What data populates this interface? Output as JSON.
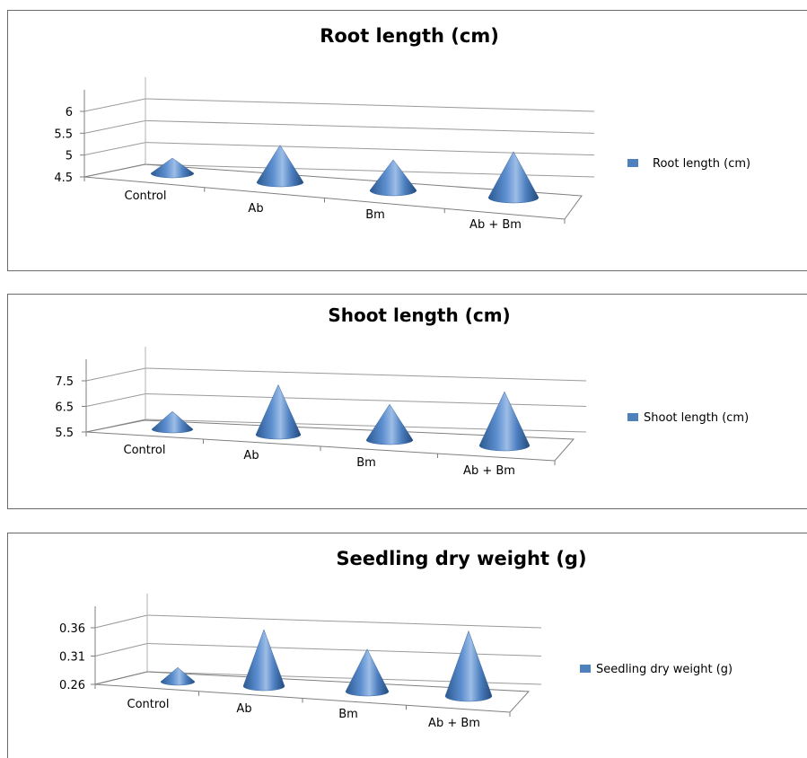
{
  "chart_data": [
    {
      "type": "bar",
      "bar_shape": "cone-3d",
      "title": "Root length (cm)",
      "categories": [
        "Control",
        "Ab",
        "Bm",
        "Ab + Bm"
      ],
      "series": [
        {
          "name": "Root length (cm)",
          "values": [
            4.85,
            5.35,
            5.2,
            5.55
          ]
        }
      ],
      "yticks": [
        "4.5",
        "5",
        "5.5",
        "6"
      ],
      "ylim": [
        4.5,
        6
      ],
      "grid": true,
      "legend_position": "right",
      "color": "#4f81bd"
    },
    {
      "type": "bar",
      "bar_shape": "cone-3d",
      "title": "Shoot length (cm)",
      "categories": [
        "Control",
        "Ab",
        "Bm",
        "Ab + Bm"
      ],
      "series": [
        {
          "name": "Shoot length (cm)",
          "values": [
            6.2,
            7.45,
            6.9,
            7.6
          ]
        }
      ],
      "yticks": [
        "5.5",
        "6.5",
        "7.5"
      ],
      "ylim": [
        5.5,
        7.5
      ],
      "grid": true,
      "legend_position": "right",
      "color": "#4f81bd"
    },
    {
      "type": "bar",
      "bar_shape": "cone-3d",
      "title": "Seedling dry weight (g)",
      "categories": [
        "Control",
        "Ab",
        "Bm",
        "Ab + Bm"
      ],
      "series": [
        {
          "name": "Seedling dry weight (g)",
          "values": [
            0.285,
            0.36,
            0.335,
            0.375
          ]
        }
      ],
      "yticks": [
        "0.26",
        "0.31",
        "0.36"
      ],
      "ylim": [
        0.26,
        0.36
      ],
      "grid": true,
      "legend_position": "right",
      "color": "#4f81bd"
    }
  ]
}
